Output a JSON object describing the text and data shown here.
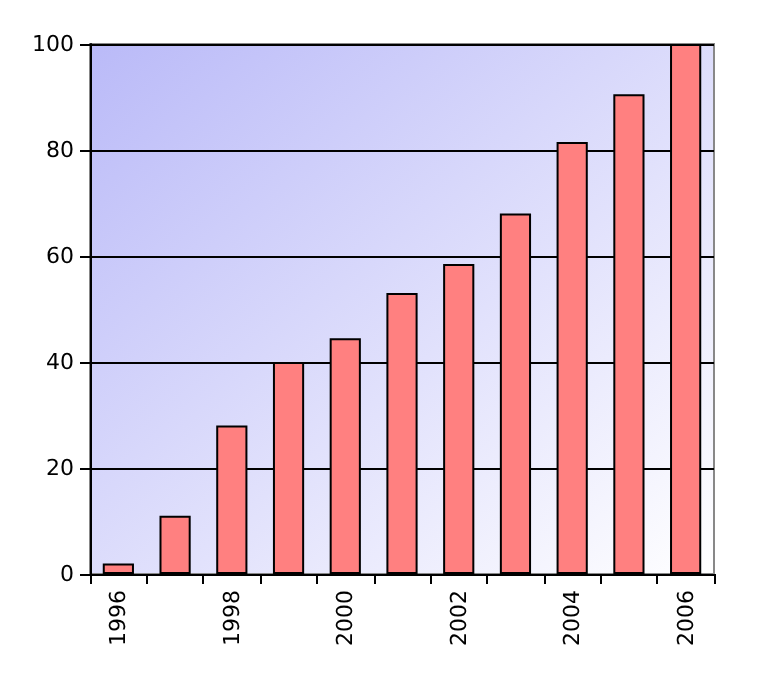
{
  "chart_data": {
    "type": "bar",
    "categories": [
      "1996",
      null,
      "1998",
      null,
      "2000",
      null,
      "2002",
      null,
      "2004",
      null,
      "2006"
    ],
    "values": [
      2,
      11,
      28,
      40,
      44.5,
      53,
      58.5,
      68,
      81.5,
      90.5,
      100
    ],
    "color": "#ff8080",
    "ylim": [
      0,
      100
    ],
    "yticks": [
      0,
      20,
      40,
      60,
      80,
      100
    ],
    "grid": "y"
  }
}
